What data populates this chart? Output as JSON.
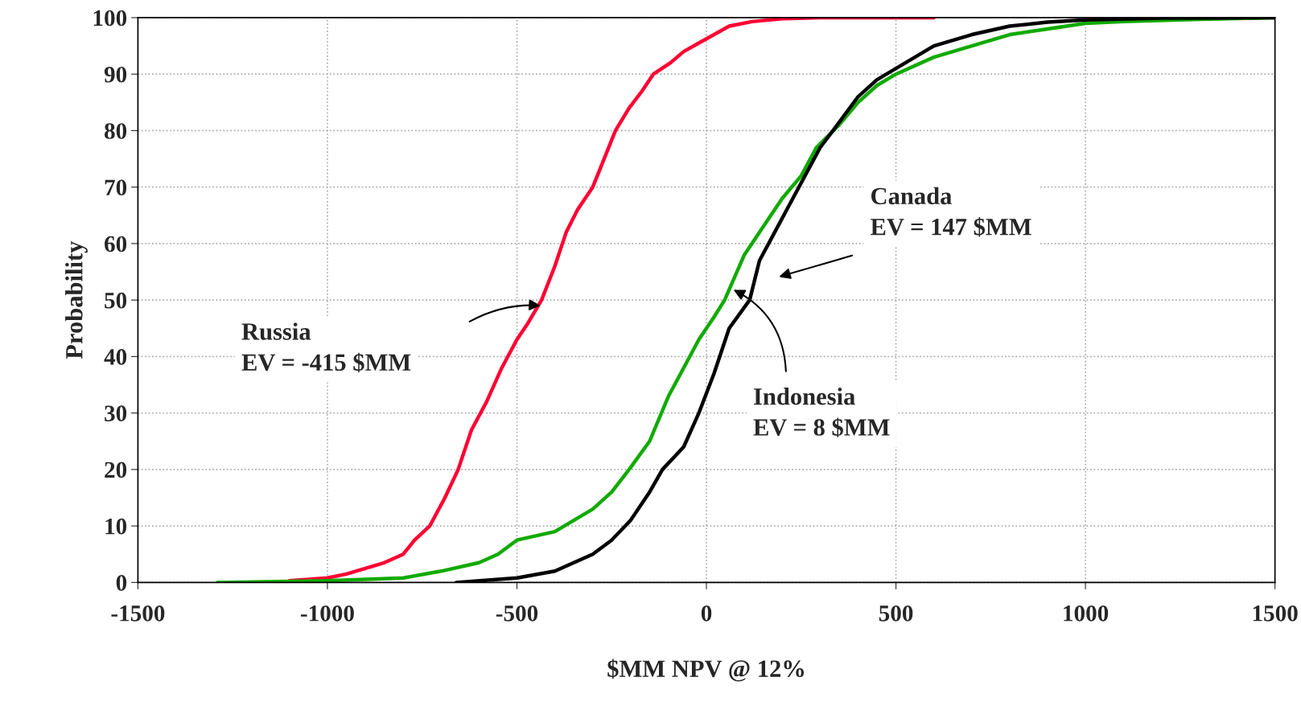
{
  "chart_data": {
    "type": "line",
    "xlabel": "$MM NPV @ 12%",
    "ylabel": "Probability",
    "xlim": [
      -1500,
      1500
    ],
    "xticks": [
      -1500,
      -1000,
      -500,
      0,
      500,
      1000,
      1500
    ],
    "ylim": [
      0,
      100
    ],
    "yticks": [
      0,
      10,
      20,
      30,
      40,
      50,
      60,
      70,
      80,
      90,
      100
    ],
    "grid": true,
    "legend": false,
    "marker": "none",
    "line_style": "solid",
    "series": [
      {
        "color": "#ff0033",
        "x": [
          -1100,
          -1000,
          -950,
          -900,
          -850,
          -800,
          -770,
          -730,
          -690,
          -655,
          -620,
          -580,
          -540,
          -500,
          -470,
          -435,
          -400,
          -370,
          -340,
          -300,
          -270,
          -240,
          -204,
          -170,
          -140,
          -95,
          -60,
          -20,
          20,
          60,
          120,
          200,
          300,
          600
        ],
        "values": [
          0.3,
          0.8,
          1.5,
          2.5,
          3.5,
          5,
          7.5,
          10,
          15,
          20,
          27,
          32,
          38,
          43,
          46,
          50,
          56,
          62,
          66,
          70,
          75,
          80,
          84,
          87,
          90,
          92,
          94,
          95.5,
          97,
          98.5,
          99.3,
          99.8,
          100,
          100
        ]
      },
      {
        "color": "#11aa00",
        "x": [
          -1290,
          -1000,
          -800,
          -700,
          -600,
          -550,
          -500,
          -400,
          -300,
          -250,
          -204,
          -150,
          -100,
          -60,
          -20,
          20,
          48,
          100,
          150,
          200,
          250,
          290,
          350,
          400,
          450,
          500,
          600,
          700,
          800,
          900,
          1000,
          1100,
          1300,
          1500
        ],
        "values": [
          0,
          0.3,
          0.8,
          2,
          3.5,
          5,
          7.5,
          9,
          13,
          16,
          20,
          25,
          33,
          38,
          43,
          47,
          50,
          58,
          63,
          68,
          72,
          77,
          81,
          85,
          88,
          90,
          93,
          95,
          97,
          98,
          99,
          99.3,
          99.7,
          100
        ]
      },
      {
        "color": "#000000",
        "x": [
          -660,
          -500,
          -400,
          -300,
          -250,
          -200,
          -150,
          -116,
          -60,
          -20,
          20,
          60,
          114,
          140,
          180,
          220,
          260,
          300,
          334,
          400,
          450,
          500,
          600,
          700,
          800,
          900,
          1000,
          1200,
          1500
        ],
        "values": [
          0,
          0.8,
          2,
          5,
          7.5,
          11,
          16,
          20,
          24,
          30,
          37,
          45,
          50,
          57,
          62,
          67,
          72,
          77,
          80,
          86,
          89,
          91,
          95,
          97,
          98.5,
          99.2,
          99.6,
          99.9,
          100
        ]
      }
    ],
    "annotations": [
      "Russia\nEV = -415 $MM",
      "Canada\nEV = 147 $MM",
      "Indonesia\nEV = 8 $MM"
    ]
  }
}
